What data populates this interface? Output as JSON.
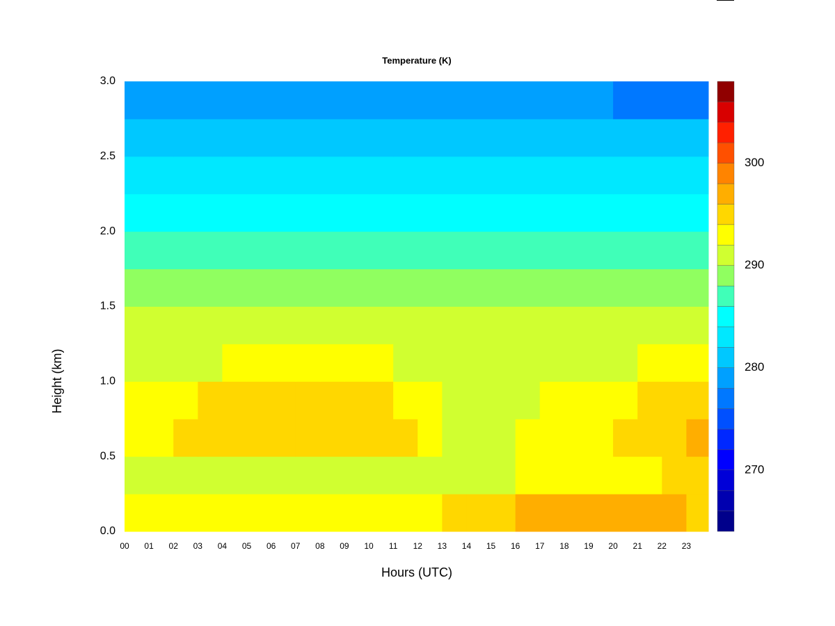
{
  "chart_data": {
    "type": "heatmap",
    "title": "Temperature (K)",
    "x_label": "Hours (UTC)",
    "y_label": "Height (km)",
    "x": [
      0,
      1,
      2,
      3,
      4,
      5,
      6,
      7,
      8,
      9,
      10,
      11,
      12,
      13,
      14,
      15,
      16,
      17,
      18,
      19,
      20,
      21,
      22,
      23
    ],
    "y": [
      0,
      0.25,
      0.5,
      0.75,
      1,
      1.25,
      1.5,
      1.75,
      2,
      2.25,
      2.5,
      2.75
    ],
    "z": [
      [
        293,
        293,
        293,
        293,
        293,
        293,
        293,
        293,
        293,
        293,
        293,
        293,
        293,
        294,
        295,
        295,
        296,
        296,
        296,
        297,
        297,
        297,
        296,
        295
      ],
      [
        291,
        291,
        291,
        291,
        291,
        291,
        291,
        291,
        291,
        291,
        291,
        291,
        291,
        291,
        291,
        291,
        292,
        292,
        293,
        293,
        293,
        293,
        294,
        295
      ],
      [
        293,
        293,
        294,
        294,
        294,
        294,
        294,
        294,
        294,
        294,
        294,
        294,
        293,
        291,
        291,
        291,
        292,
        292,
        293,
        293,
        294,
        294,
        295,
        296
      ],
      [
        293,
        293,
        293,
        294,
        294,
        294,
        294,
        294,
        294,
        294,
        294,
        293,
        293,
        291,
        291,
        291,
        291,
        292,
        293,
        293,
        293,
        294,
        295,
        295
      ],
      [
        291,
        291,
        291,
        291,
        292,
        292,
        292,
        293,
        292,
        292,
        292,
        291,
        291,
        291,
        291,
        291,
        291,
        291,
        291,
        291,
        291,
        292,
        293,
        293
      ],
      [
        290,
        290,
        290,
        290,
        290,
        290,
        290,
        290,
        290,
        290,
        290,
        290,
        290,
        290,
        290,
        290,
        290,
        290,
        290,
        290,
        290,
        290,
        290,
        290
      ],
      [
        289,
        289,
        289,
        289,
        289,
        289,
        289,
        289,
        289,
        289,
        289,
        289,
        289,
        289,
        289,
        289,
        289,
        289,
        289,
        289,
        289,
        289,
        289,
        289
      ],
      [
        287,
        287,
        287,
        287,
        287,
        287,
        287,
        287,
        287,
        287,
        287,
        287,
        287,
        287,
        287,
        287,
        287,
        287,
        287,
        287,
        287,
        287,
        287,
        287
      ],
      [
        285,
        285,
        285,
        285,
        285,
        285,
        285,
        285,
        285,
        285,
        285,
        285,
        285,
        285,
        285,
        285,
        285,
        285,
        285,
        285,
        285,
        285,
        285,
        285
      ],
      [
        283,
        283,
        283,
        283,
        283,
        283,
        283,
        283,
        283,
        283,
        283,
        283,
        283,
        283,
        283,
        283,
        283,
        283,
        283,
        283,
        283,
        283,
        283,
        283
      ],
      [
        281,
        281,
        281,
        281,
        281,
        281,
        281,
        281,
        281,
        281,
        281,
        281,
        281,
        281,
        281,
        281,
        281,
        281,
        281,
        281,
        281,
        281,
        281,
        281
      ],
      [
        279,
        279,
        279,
        279,
        279,
        279,
        279,
        279,
        279,
        279,
        279,
        279,
        279,
        279,
        279,
        279,
        279,
        279,
        278,
        278,
        277,
        277,
        277,
        277
      ]
    ],
    "xlim": [
      0,
      23.9
    ],
    "ylim": [
      0,
      3
    ],
    "xticks": [
      {
        "value": 0,
        "label": "00"
      },
      {
        "value": 1,
        "label": "01"
      },
      {
        "value": 2,
        "label": "02"
      },
      {
        "value": 3,
        "label": "03"
      },
      {
        "value": 4,
        "label": "04"
      },
      {
        "value": 5,
        "label": "05"
      },
      {
        "value": 6,
        "label": "06"
      },
      {
        "value": 7,
        "label": "07"
      },
      {
        "value": 8,
        "label": "08"
      },
      {
        "value": 9,
        "label": "09"
      },
      {
        "value": 10,
        "label": "10"
      },
      {
        "value": 11,
        "label": "11"
      },
      {
        "value": 12,
        "label": "12"
      },
      {
        "value": 13,
        "label": "13"
      },
      {
        "value": 14,
        "label": "14"
      },
      {
        "value": 15,
        "label": "15"
      },
      {
        "value": 16,
        "label": "16"
      },
      {
        "value": 17,
        "label": "17"
      },
      {
        "value": 18,
        "label": "18"
      },
      {
        "value": 19,
        "label": "19"
      },
      {
        "value": 20,
        "label": "20"
      },
      {
        "value": 21,
        "label": "21"
      },
      {
        "value": 22,
        "label": "22"
      },
      {
        "value": 23,
        "label": "23"
      }
    ],
    "yticks": [
      {
        "value": 0,
        "label": "0.0"
      },
      0.5,
      {
        "value": 1,
        "label": "1.0"
      },
      1.5,
      {
        "value": 2,
        "label": "2.0"
      },
      2.5,
      {
        "value": 3,
        "label": "3.0"
      }
    ],
    "levels": [
      264,
      266,
      268,
      270,
      272,
      274,
      276,
      278,
      280,
      282,
      284,
      286,
      288,
      290,
      292,
      294,
      296,
      298,
      300,
      302,
      304,
      306,
      308
    ],
    "colors": [
      "#00008b",
      "#0000b0",
      "#0000d8",
      "#0000ff",
      "#0028ff",
      "#0050ff",
      "#0078ff",
      "#00a0ff",
      "#00c8ff",
      "#00e8ff",
      "#00ffff",
      "#40ffb8",
      "#90ff60",
      "#d0ff30",
      "#ffff00",
      "#ffd700",
      "#ffae00",
      "#ff8400",
      "#ff5000",
      "#ff2000",
      "#d80000",
      "#900000"
    ],
    "clim": [
      264,
      308
    ],
    "cticks": [
      270,
      280,
      290,
      300
    ]
  }
}
